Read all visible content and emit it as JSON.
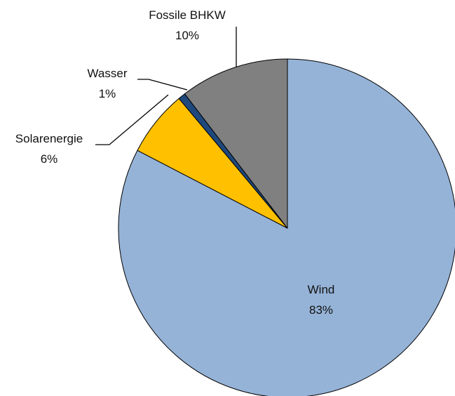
{
  "chart_data": {
    "type": "pie",
    "title": "",
    "start_angle_deg": 90,
    "direction": "clockwise",
    "slices": [
      {
        "label": "Wind",
        "percent_label": "83%",
        "value": 82.6,
        "color": "#95B3D7"
      },
      {
        "label": "Solarenergie",
        "percent_label": "6%",
        "value": 6.3,
        "color": "#FFC000"
      },
      {
        "label": "Wasser",
        "percent_label": "1%",
        "value": 0.7,
        "color": "#1F497D"
      },
      {
        "label": "Fossile BHKW",
        "percent_label": "10%",
        "value": 10.4,
        "color": "#808080"
      }
    ]
  }
}
